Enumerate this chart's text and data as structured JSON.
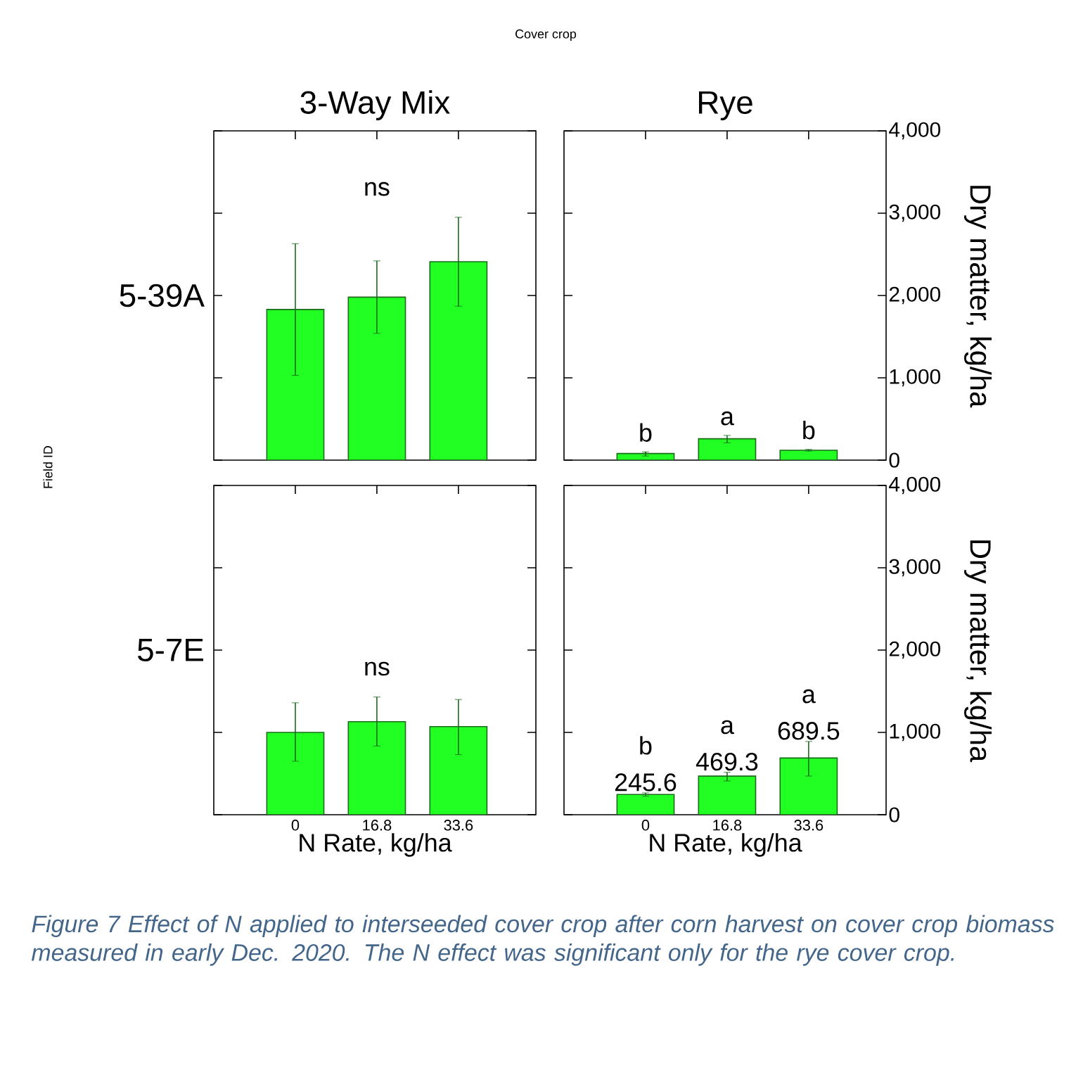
{
  "chart_data": [
    {
      "type": "bar",
      "title": "3-Way Mix",
      "ylabel": "5-39A",
      "categories": [
        "0",
        "16.8",
        "33.6"
      ],
      "values": [
        1830,
        1980,
        2410
      ],
      "errors": [
        [
          1030,
          2630
        ],
        [
          1540,
          2420
        ],
        [
          1870,
          2950
        ]
      ],
      "color": "#22ff22",
      "ylim": [
        0,
        4000
      ],
      "yticks": [
        0,
        1000,
        2000,
        3000,
        4000
      ],
      "tick_labels": false,
      "annotations": [
        "Cover crop",
        "Field ID",
        "Figure 7 Effect of N applied to interseeded cover crop after corn harvest on cover crop biomass measured in early Dec. 2020. The N effect was significant only for the rye cover crop.",
        "ns"
      ]
    },
    {
      "type": "bar",
      "title": "Rye",
      "ylabel": "Dry matter, kg/ha",
      "categories": [
        "0",
        "16.8",
        "33.6"
      ],
      "values": [
        80,
        260,
        120
      ],
      "errors": [
        [
          50,
          100
        ],
        [
          210,
          300
        ],
        [
          110,
          130
        ]
      ],
      "color": "#22ff22",
      "ylim": [
        0,
        4000
      ],
      "yticks": [
        0,
        {
          "value": 1000,
          "label": "1,000"
        },
        {
          "value": 2000,
          "label": "2,000"
        },
        {
          "value": 3000,
          "label": "3,000"
        },
        {
          "value": 4000,
          "label": "4,000"
        }
      ],
      "tick_labels": "y",
      "annotations": [
        "b",
        "a",
        "b"
      ]
    },
    {
      "type": "bar",
      "ylabel": "5-7E",
      "xlabel": "N Rate, kg/ha",
      "categories": [
        "0",
        "16.8",
        "33.6"
      ],
      "values": [
        1000,
        1130,
        1070
      ],
      "errors": [
        [
          650,
          1360
        ],
        [
          835,
          1430
        ],
        [
          730,
          1400
        ]
      ],
      "color": "#22ff22",
      "ylim": [
        0,
        4000
      ],
      "yticks": [
        0,
        1000,
        2000,
        3000,
        4000
      ],
      "tick_labels": "x",
      "annotations": [
        "ns"
      ]
    },
    {
      "type": "bar",
      "ylabel": "Dry matter, kg/ha",
      "xlabel": "N Rate, kg/ha",
      "categories": [
        "0",
        "16.8",
        "33.6"
      ],
      "values": [
        245.6,
        469.3,
        689.5
      ],
      "value_labels": [
        "245.6",
        "469.3",
        "689.5"
      ],
      "errors": [
        [
          225,
          265
        ],
        [
          410,
          515
        ],
        [
          470,
          890
        ]
      ],
      "color": "#22ff22",
      "ylim": [
        0,
        4000
      ],
      "yticks": [
        0,
        {
          "value": 1000,
          "label": "1,000"
        },
        {
          "value": 2000,
          "label": "2,000"
        },
        {
          "value": 3000,
          "label": "3,000"
        },
        {
          "value": 4000,
          "label": "4,000"
        }
      ],
      "annotations": [
        "b",
        "a",
        "a"
      ]
    }
  ]
}
